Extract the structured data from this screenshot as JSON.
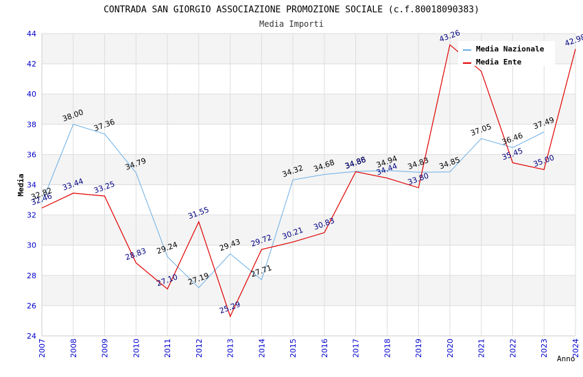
{
  "colors": {
    "national": "#6aaee6",
    "ente": "#e00000",
    "axis_label": "#0000cc",
    "national_label": "#000000",
    "ente_label": "#000080",
    "band": "#f4f4f4",
    "grid": "#dddddd"
  },
  "chart_data": {
    "type": "line",
    "title": "CONTRADA SAN GIORGIO ASSOCIAZIONE PROMOZIONE SOCIALE (c.f.80018090383)",
    "subtitle": "Media Importi",
    "xlabel": "Anno",
    "ylabel": "Media",
    "ylim": [
      24,
      44
    ],
    "grid": true,
    "legend_position": "top-right",
    "x": [
      2007,
      2008,
      2009,
      2010,
      2011,
      2012,
      2013,
      2014,
      2015,
      2016,
      2017,
      2018,
      2019,
      2020,
      2021,
      2022,
      2023,
      2024
    ],
    "x_tick_labels": [
      "2007",
      "2008",
      "2009",
      "2010",
      "2011",
      "2012",
      "2013",
      "2014",
      "2015",
      "2016",
      "2017",
      "2018",
      "2019",
      "2020",
      "2021",
      "2022",
      "2023",
      "2024"
    ],
    "y_tick_labels": [
      "24",
      "26",
      "28",
      "30",
      "32",
      "34",
      "36",
      "38",
      "40",
      "42",
      "44"
    ],
    "series": [
      {
        "name": "Media Nazionale",
        "values": [
          32.82,
          38.0,
          37.36,
          34.79,
          29.24,
          27.19,
          29.43,
          27.71,
          34.32,
          34.68,
          34.88,
          34.94,
          34.83,
          34.85,
          37.05,
          36.46,
          37.49,
          null
        ],
        "labels": [
          "32.82",
          "38.00",
          "37.36",
          "34.79",
          "29.24",
          "27.19",
          "29.43",
          "27.71",
          "34.32",
          "34.68",
          "34.88",
          "34.94",
          "34.83",
          "34.85",
          "37.05",
          "36.46",
          "37.49",
          ""
        ]
      },
      {
        "name": "Media Ente",
        "values": [
          32.46,
          33.44,
          33.25,
          28.83,
          27.1,
          31.55,
          25.29,
          29.72,
          30.21,
          30.83,
          34.86,
          34.44,
          33.8,
          43.26,
          41.5,
          35.45,
          35.0,
          42.98
        ],
        "labels": [
          "32.46",
          "33.44",
          "33.25",
          "28.83",
          "27.10",
          "31.55",
          "25.29",
          "29.72",
          "30.21",
          "30.83",
          "34.86",
          "34.44",
          "33.80",
          "43.26",
          "",
          "35.45",
          "35.00",
          "42.98"
        ]
      }
    ]
  }
}
